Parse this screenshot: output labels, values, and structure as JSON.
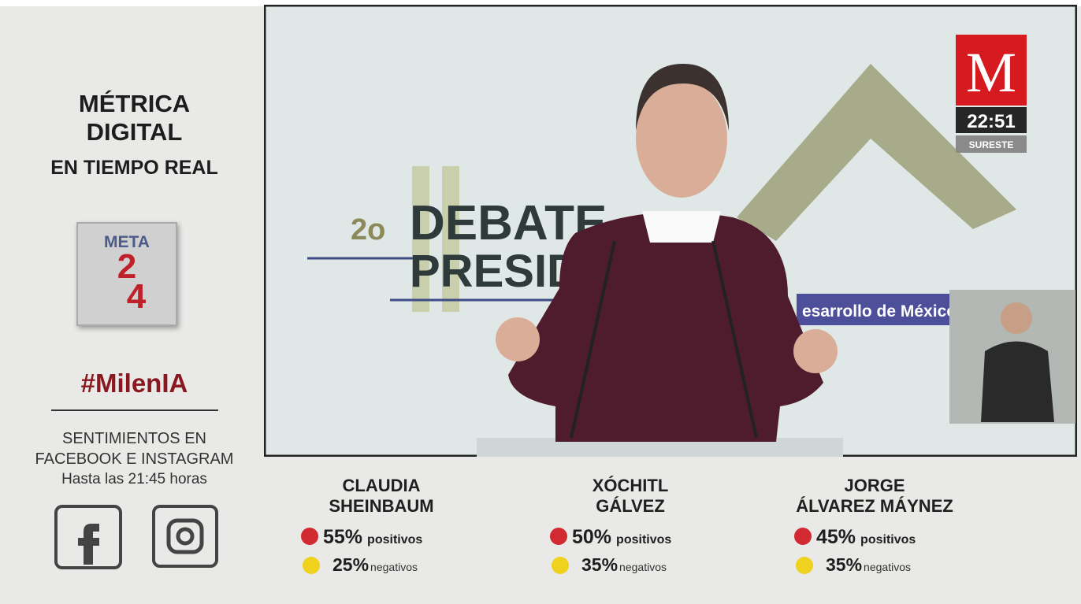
{
  "sidebar": {
    "title": [
      "MÉTRICA",
      "DIGITAL"
    ],
    "subtitle": "EN TIEMPO REAL",
    "logo": {
      "label": "META",
      "digit_top": "2",
      "digit_bottom": "4"
    },
    "hashtag": "#MilenIA",
    "source": [
      "SENTIMIENTOS EN",
      "FACEBOOK E INSTAGRAM"
    ],
    "time_note": "Hasta las 21:45 horas"
  },
  "broadcast": {
    "logo": "M",
    "clock": "22:51",
    "region": "SURESTE"
  },
  "video": {
    "backdrop": [
      "2o",
      "DEBATE",
      "PRESID"
    ],
    "banner": "esarrollo de México"
  },
  "candidates": [
    {
      "name": [
        "CLAUDIA",
        "SHEINBAUM"
      ],
      "positive": "55%",
      "positive_label": "positivos",
      "negative": "25%",
      "negative_label": "negativos"
    },
    {
      "name": [
        "XÓCHITL",
        "GÁLVEZ"
      ],
      "positive": "50%",
      "positive_label": "positivos",
      "negative": "35%",
      "negative_label": "negativos"
    },
    {
      "name": [
        "JORGE",
        "ÁLVAREZ MÁYNEZ"
      ],
      "positive": "45%",
      "positive_label": "positivos",
      "negative": "35%",
      "negative_label": "negativos"
    }
  ]
}
